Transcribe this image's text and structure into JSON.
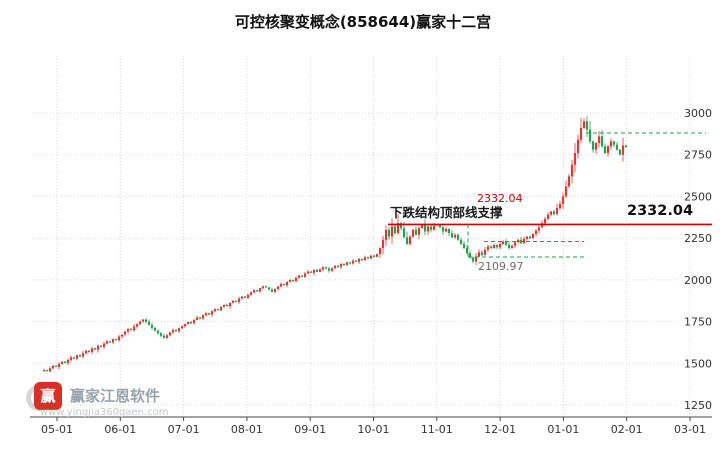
{
  "title": "可控核聚变概念(858644)赢家十二宫",
  "annotations": {
    "support_text": "下跌结构顶部线支撑",
    "resistance_label": "2332.04",
    "resistance_label_bold": "2332.04",
    "low_label": "2109.97"
  },
  "watermark": {
    "brand": "赢家江恩软件",
    "url": "www.yingjia360gaen.com",
    "logo_glyph": "赢"
  },
  "chart_data": {
    "type": "candlestick",
    "title": "可控核聚变概念(858644)赢家十二宫",
    "x_tick_labels": [
      "05-01",
      "06-01",
      "07-01",
      "08-01",
      "09-01",
      "10-01",
      "11-01",
      "12-01",
      "01-01",
      "02-01",
      "03-01"
    ],
    "y_ticks": [
      1250,
      1500,
      1750,
      2000,
      2250,
      2500,
      2750,
      3000
    ],
    "ylim": [
      1250,
      3050
    ],
    "grid": true,
    "levels": {
      "resistance": 2332.04,
      "breakdown_low": 2109.97,
      "consolidation_top": 2230,
      "consolidation_bottom": 2137,
      "recent_high": 2880
    },
    "colors": {
      "up": "#d83b35",
      "down": "#2a9e53",
      "resistance_line": "#cc0000",
      "support_line": "#2a9e53",
      "grid": "#d9d9d9",
      "axis": "#444444"
    },
    "closes": [
      1460,
      1452,
      1470,
      1485,
      1478,
      1496,
      1510,
      1502,
      1520,
      1535,
      1528,
      1548,
      1540,
      1560,
      1575,
      1568,
      1590,
      1582,
      1605,
      1598,
      1618,
      1632,
      1625,
      1645,
      1638,
      1660,
      1672,
      1690,
      1705,
      1698,
      1720,
      1735,
      1750,
      1762,
      1748,
      1730,
      1712,
      1695,
      1680,
      1665,
      1652,
      1668,
      1685,
      1700,
      1692,
      1710,
      1722,
      1735,
      1748,
      1740,
      1760,
      1775,
      1768,
      1788,
      1800,
      1792,
      1812,
      1825,
      1818,
      1838,
      1850,
      1842,
      1862,
      1875,
      1868,
      1888,
      1900,
      1892,
      1910,
      1925,
      1938,
      1930,
      1950,
      1962,
      1955,
      1942,
      1928,
      1945,
      1960,
      1975,
      1968,
      1988,
      2000,
      1992,
      2012,
      2025,
      2018,
      2038,
      2050,
      2042,
      2060,
      2048,
      2062,
      2075,
      2068,
      2055,
      2070,
      2085,
      2078,
      2095,
      2088,
      2105,
      2098,
      2115,
      2108,
      2125,
      2118,
      2135,
      2128,
      2145,
      2138,
      2155,
      2190,
      2240,
      2300,
      2260,
      2320,
      2280,
      2340,
      2310,
      2255,
      2215,
      2260,
      2300,
      2270,
      2310,
      2330,
      2290,
      2320,
      2300,
      2325,
      2332,
      2315,
      2290,
      2305,
      2280,
      2255,
      2270,
      2240,
      2215,
      2190,
      2160,
      2135,
      2110,
      2140,
      2165,
      2150,
      2180,
      2200,
      2190,
      2210,
      2195,
      2215,
      2230,
      2210,
      2190,
      2205,
      2225,
      2240,
      2220,
      2245,
      2260,
      2250,
      2275,
      2295,
      2315,
      2340,
      2365,
      2390,
      2410,
      2395,
      2430,
      2455,
      2500,
      2560,
      2620,
      2690,
      2760,
      2840,
      2910,
      2950,
      2900,
      2830,
      2780,
      2820,
      2860,
      2800,
      2760,
      2800,
      2830,
      2810,
      2780,
      2750,
      2805,
      2795
    ]
  }
}
